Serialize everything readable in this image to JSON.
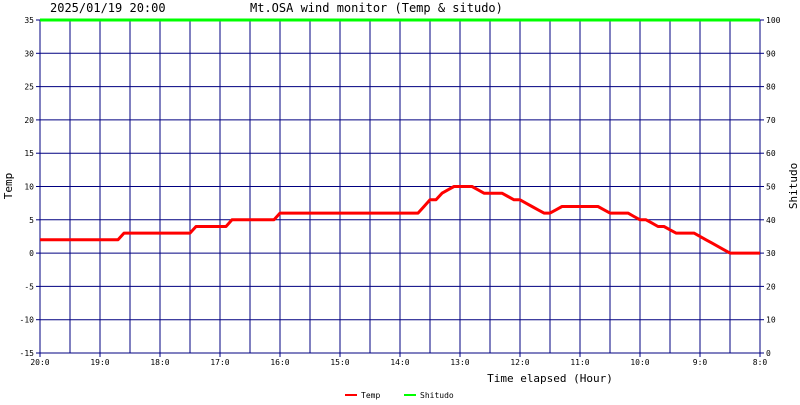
{
  "header": {
    "timestamp": "2025/01/19 20:00",
    "title": "Mt.OSA wind monitor (Temp & situdo)"
  },
  "chart_data": {
    "type": "line",
    "title": "Mt.OSA wind monitor (Temp & situdo)",
    "xlabel": "Time elapsed (Hour)",
    "ylabel": "Temp",
    "y2label": "Shitudo",
    "grid": true,
    "legend_position": "bottom",
    "x": [
      20.0,
      19.9,
      19.8,
      19.7,
      19.6,
      19.5,
      19.4,
      19.3,
      19.2,
      19.1,
      19.0,
      18.9,
      18.8,
      18.7,
      18.6,
      18.5,
      18.4,
      18.3,
      18.2,
      18.1,
      18.0,
      17.9,
      17.8,
      17.7,
      17.6,
      17.5,
      17.4,
      17.3,
      17.2,
      17.1,
      17.0,
      16.9,
      16.8,
      16.7,
      16.6,
      16.5,
      16.4,
      16.3,
      16.2,
      16.1,
      16.0,
      15.9,
      15.8,
      15.7,
      15.6,
      15.5,
      15.4,
      15.3,
      15.2,
      15.1,
      15.0,
      14.9,
      14.8,
      14.7,
      14.6,
      14.5,
      14.4,
      14.3,
      14.2,
      14.1,
      14.0,
      13.9,
      13.8,
      13.7,
      13.6,
      13.5,
      13.4,
      13.3,
      13.2,
      13.1,
      13.0,
      12.9,
      12.8,
      12.7,
      12.6,
      12.5,
      12.4,
      12.3,
      12.2,
      12.1,
      12.0,
      11.9,
      11.8,
      11.7,
      11.6,
      11.5,
      11.4,
      11.3,
      11.2,
      11.1,
      11.0,
      10.9,
      10.8,
      10.7,
      10.6,
      10.5,
      10.4,
      10.3,
      10.2,
      10.1,
      10.0,
      9.9,
      9.8,
      9.7,
      9.6,
      9.5,
      9.4,
      9.3,
      9.2,
      9.1,
      9.0,
      8.9,
      8.8,
      8.7,
      8.6,
      8.5,
      8.4,
      8.3,
      8.2,
      8.1,
      8.0
    ],
    "xticks": {
      "values": [
        20,
        19,
        18,
        17,
        16,
        15,
        14,
        13,
        12,
        11,
        10,
        9,
        8
      ],
      "labels": [
        "20:0",
        "19:0",
        "18:0",
        "17:0",
        "16:0",
        "15:0",
        "14:0",
        "13:0",
        "12:0",
        "11:0",
        "10:0",
        "9:0",
        "8:0"
      ]
    },
    "xlim": [
      20,
      8
    ],
    "ylim": [
      -15,
      35
    ],
    "yticks": [
      -15,
      -10,
      -5,
      0,
      5,
      10,
      15,
      20,
      25,
      30,
      35
    ],
    "y2lim": [
      0,
      100
    ],
    "y2ticks": [
      0,
      10,
      20,
      30,
      40,
      50,
      60,
      70,
      80,
      90,
      100
    ],
    "series": [
      {
        "name": "Temp",
        "color": "#ff0000",
        "axis": "left",
        "values": [
          2,
          2,
          2,
          2,
          2,
          2,
          2,
          2,
          2,
          2,
          2,
          2,
          2,
          2,
          3,
          3,
          3,
          3,
          3,
          3,
          3,
          3,
          3,
          3,
          3,
          3,
          4,
          4,
          4,
          4,
          4,
          4,
          5,
          5,
          5,
          5,
          5,
          5,
          5,
          5,
          6,
          6,
          6,
          6,
          6,
          6,
          6,
          6,
          6,
          6,
          6,
          6,
          6,
          6,
          6,
          6,
          6,
          6,
          6,
          6,
          6,
          6,
          6,
          6,
          7,
          8,
          8,
          9,
          9.5,
          10,
          10,
          10,
          10,
          9.5,
          9,
          9,
          9,
          9,
          8.5,
          8,
          8,
          7.5,
          7,
          6.5,
          6,
          6,
          6.5,
          7,
          7,
          7,
          7,
          7,
          7,
          7,
          6.5,
          6,
          6,
          6,
          6,
          5.5,
          5,
          5,
          4.5,
          4,
          4,
          3.5,
          3,
          3,
          3,
          3,
          2.5,
          2,
          1.5,
          1,
          0.5,
          0,
          0,
          0,
          0,
          0,
          0
        ]
      },
      {
        "name": "Shitudo",
        "color": "#00ff00",
        "axis": "right",
        "values": [
          100,
          100,
          100,
          100,
          100,
          100,
          100,
          100,
          100,
          100,
          100,
          100,
          100,
          100,
          100,
          100,
          100,
          100,
          100,
          100,
          100,
          100,
          100,
          100,
          100,
          100,
          100,
          100,
          100,
          100,
          100,
          100,
          100,
          100,
          100,
          100,
          100,
          100,
          100,
          100,
          100,
          100,
          100,
          100,
          100,
          100,
          100,
          100,
          100,
          100,
          100,
          100,
          100,
          100,
          100,
          100,
          100,
          100,
          100,
          100,
          100,
          100,
          100,
          100,
          100,
          100,
          100,
          100,
          100,
          100,
          100,
          100,
          100,
          100,
          100,
          100,
          100,
          100,
          100,
          100,
          100,
          100,
          100,
          100,
          100,
          100,
          100,
          100,
          100,
          100,
          100,
          100,
          100,
          100,
          100,
          100,
          100,
          100,
          100,
          100,
          100,
          100,
          100,
          100,
          100,
          100,
          100,
          100,
          100,
          100,
          100,
          100,
          100,
          100,
          100,
          100,
          100,
          100,
          100,
          100,
          100
        ]
      }
    ],
    "colors": {
      "grid": "#000080",
      "plot_background": "#ffffff",
      "frame": "#000080"
    }
  }
}
